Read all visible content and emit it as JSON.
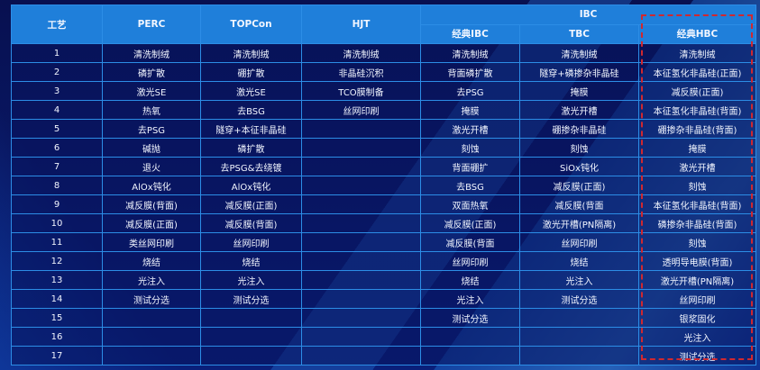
{
  "header": {
    "process": "工艺",
    "perc": "PERC",
    "topcon": "TOPCon",
    "hjt": "HJT",
    "ibc": "IBC",
    "ibc_sub": [
      "经典IBC",
      "TBC",
      "经典HBC"
    ]
  },
  "rows": [
    [
      "1",
      "清洗制绒",
      "清洗制绒",
      "清洗制绒",
      "清洗制绒",
      "清洗制绒",
      "清洗制绒"
    ],
    [
      "2",
      "磷扩散",
      "硼扩散",
      "非晶硅沉积",
      "背面磷扩散",
      "隧穿+磷掺杂非晶硅",
      "本征氢化非晶硅(正面)"
    ],
    [
      "3",
      "激光SE",
      "激光SE",
      "TCO膜制备",
      "去PSG",
      "掩膜",
      "减反膜(正面)"
    ],
    [
      "4",
      "热氧",
      "去BSG",
      "丝网印刷",
      "掩膜",
      "激光开槽",
      "本征氢化非晶硅(背面)"
    ],
    [
      "5",
      "去PSG",
      "隧穿+本征非晶硅",
      "",
      "激光开槽",
      "硼掺杂非晶硅",
      "硼掺杂非晶硅(背面)"
    ],
    [
      "6",
      "碱抛",
      "磷扩散",
      "",
      "刻蚀",
      "刻蚀",
      "掩膜"
    ],
    [
      "7",
      "退火",
      "去PSG&去绕镀",
      "",
      "背面硼扩",
      "SiOx钝化",
      "激光开槽"
    ],
    [
      "8",
      "AlOx钝化",
      "AlOx钝化",
      "",
      "去BSG",
      "减反膜(正面)",
      "刻蚀"
    ],
    [
      "9",
      "减反膜(背面)",
      "减反膜(正面)",
      "",
      "双面热氧",
      "减反膜(背面",
      "本征氢化非晶硅(背面)"
    ],
    [
      "10",
      "减反膜(正面)",
      "减反膜(背面)",
      "",
      "减反膜(正面)",
      "激光开槽(PN隔离)",
      "磷掺杂非晶硅(背面)"
    ],
    [
      "11",
      "类丝网印刷",
      "丝网印刷",
      "",
      "减反膜(背面",
      "丝网印刷",
      "刻蚀"
    ],
    [
      "12",
      "烧结",
      "烧结",
      "",
      "丝网印刷",
      "烧结",
      "透明导电膜(背面)"
    ],
    [
      "13",
      "光注入",
      "光注入",
      "",
      "烧结",
      "光注入",
      "激光开槽(PN隔离)"
    ],
    [
      "14",
      "测试分选",
      "测试分选",
      "",
      "光注入",
      "测试分选",
      "丝网印刷"
    ],
    [
      "15",
      "",
      "",
      "",
      "测试分选",
      "",
      "银浆固化"
    ],
    [
      "16",
      "",
      "",
      "",
      "",
      "",
      "光注入"
    ],
    [
      "17",
      "",
      "",
      "",
      "",
      "",
      "测试分选"
    ]
  ],
  "colors": {
    "background": "#07135a",
    "header": "#1f7fda",
    "grid": "#2c8de6",
    "highlight_box": "#d0282f"
  }
}
